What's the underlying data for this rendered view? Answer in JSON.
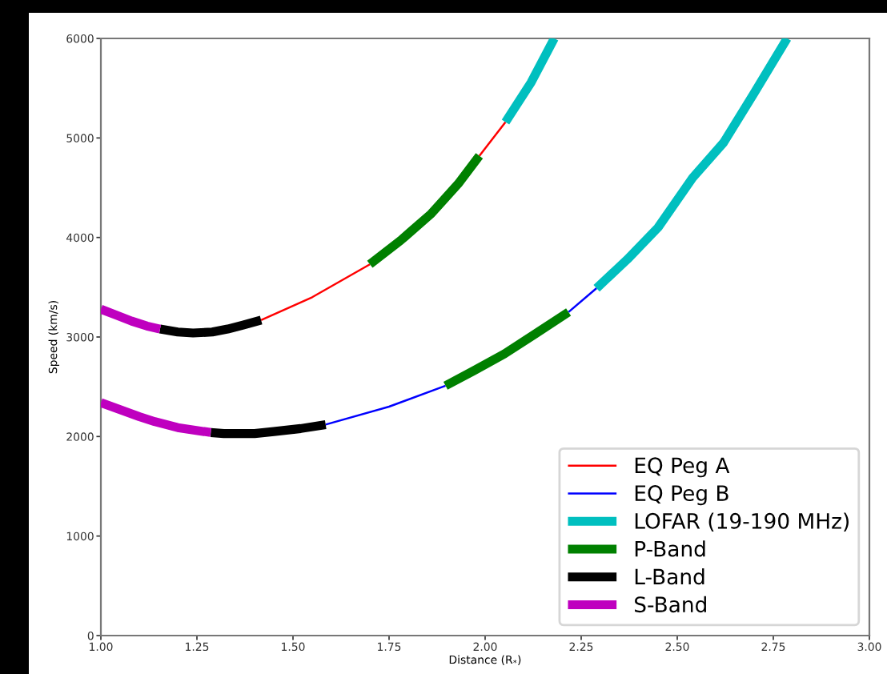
{
  "chart_data": {
    "type": "line",
    "xlabel": "Distance (R$_{*}$)",
    "ylabel": "Speed (km/s)",
    "xlim": [
      1.0,
      3.0
    ],
    "ylim": [
      0,
      6000
    ],
    "xticks": [
      {
        "value": 1.0,
        "label": "1.00"
      },
      {
        "value": 1.25,
        "label": "1.25"
      },
      {
        "value": 1.5,
        "label": "1.50"
      },
      {
        "value": 1.75,
        "label": "1.75"
      },
      {
        "value": 2.0,
        "label": "2.00"
      },
      {
        "value": 2.25,
        "label": "2.25"
      },
      {
        "value": 2.5,
        "label": "2.50"
      },
      {
        "value": 2.75,
        "label": "2.75"
      },
      {
        "value": 3.0,
        "label": "3.00"
      }
    ],
    "yticks": [
      0,
      1000,
      2000,
      3000,
      4000,
      5000,
      6000
    ],
    "grid": false,
    "legend": "bottom right",
    "series": [
      {
        "name": "EQ Peg A",
        "color": "#ff0000",
        "x": [
          1.417,
          1.55,
          1.7
        ],
        "values": [
          3170,
          3400,
          3730
        ]
      },
      {
        "color": "#ff0000",
        "x": [
          1.985,
          2.053
        ],
        "values": [
          4820,
          5160
        ]
      },
      {
        "name": "EQ Peg B",
        "color": "#0000ff",
        "x": [
          1.585,
          1.75,
          1.897
        ],
        "values": [
          2120,
          2300,
          2510
        ]
      },
      {
        "color": "#0000ff",
        "x": [
          2.217,
          2.29
        ],
        "values": [
          3250,
          3490
        ]
      },
      {
        "name": "LOFAR (19-190 MHz)",
        "color": "#00bfbf",
        "x": [
          2.053,
          2.12,
          2.18
        ],
        "values": [
          5160,
          5560,
          6000
        ]
      },
      {
        "color": "#00bfbf",
        "x": [
          2.29,
          2.37,
          2.45,
          2.54,
          2.62,
          2.7,
          2.786
        ],
        "values": [
          3490,
          3780,
          4100,
          4600,
          4950,
          5450,
          6000
        ]
      },
      {
        "name": "P-Band",
        "color": "#008000",
        "x": [
          1.7,
          1.78,
          1.86,
          1.93,
          1.985
        ],
        "values": [
          3730,
          3970,
          4240,
          4540,
          4820
        ]
      },
      {
        "color": "#008000",
        "x": [
          1.897,
          1.97,
          2.05,
          2.13,
          2.217
        ],
        "values": [
          2510,
          2660,
          2830,
          3030,
          3250
        ]
      },
      {
        "name": "L-Band",
        "color": "#000000",
        "x": [
          1.154,
          1.2,
          1.24,
          1.29,
          1.33,
          1.37,
          1.417
        ],
        "values": [
          3080,
          3050,
          3040,
          3050,
          3080,
          3120,
          3170
        ]
      },
      {
        "color": "#000000",
        "x": [
          1.286,
          1.32,
          1.36,
          1.4,
          1.45,
          1.52,
          1.585
        ],
        "values": [
          2040,
          2030,
          2030,
          2030,
          2050,
          2080,
          2120
        ]
      },
      {
        "name": "S-Band",
        "color": "#bf00bf",
        "x": [
          1.0,
          1.04,
          1.08,
          1.12,
          1.154
        ],
        "values": [
          3280,
          3220,
          3160,
          3110,
          3080
        ]
      },
      {
        "color": "#bf00bf",
        "x": [
          1.0,
          1.05,
          1.1,
          1.14,
          1.2,
          1.286
        ],
        "values": [
          2340,
          2270,
          2200,
          2150,
          2090,
          2040
        ]
      }
    ]
  }
}
